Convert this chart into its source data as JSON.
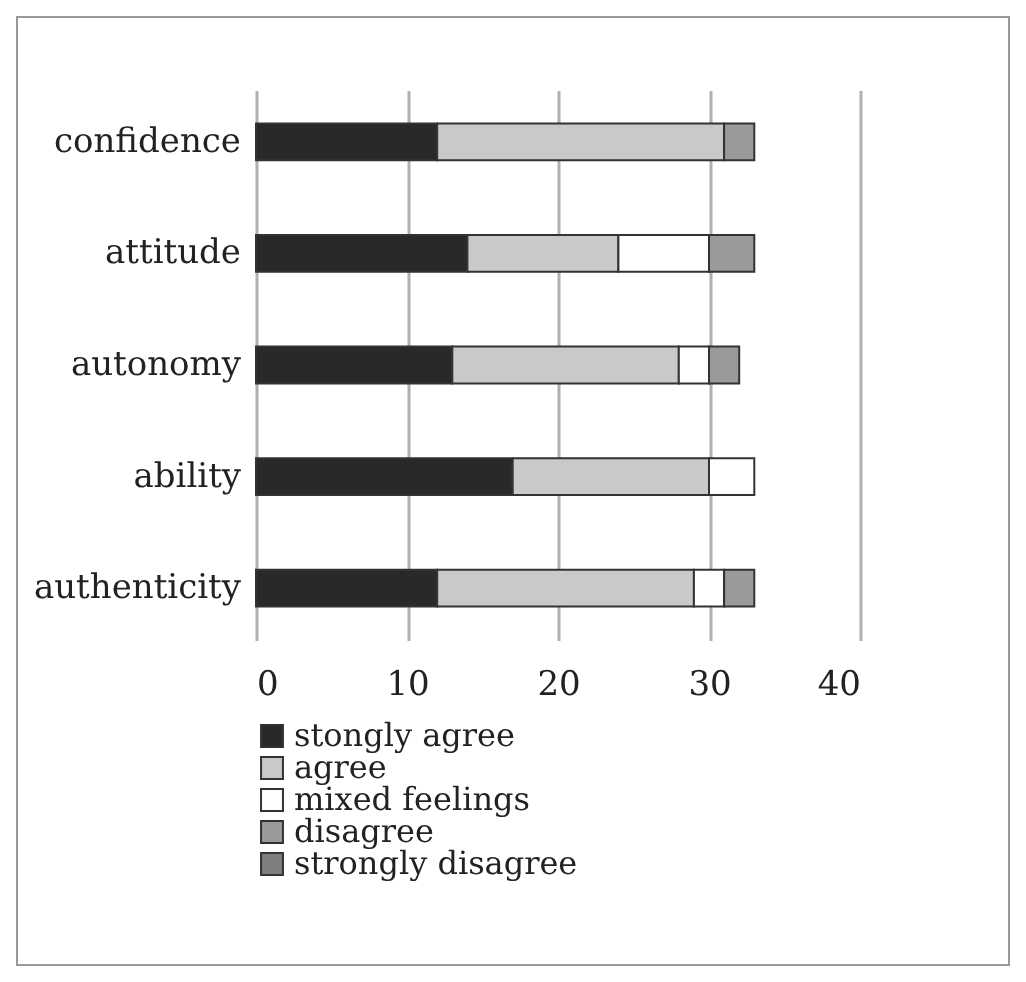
{
  "chart_data": {
    "type": "bar",
    "orientation": "horizontal",
    "stacked": true,
    "categories": [
      "confidence",
      "attitude",
      "autonomy",
      "ability",
      "authenticity"
    ],
    "series": [
      {
        "name": "stongly agree",
        "color": "#2b2828",
        "values": [
          12,
          14,
          13,
          17,
          12
        ]
      },
      {
        "name": "agree",
        "color": "#c8c9c9",
        "values": [
          19,
          10,
          15,
          13,
          17
        ]
      },
      {
        "name": "mixed feelings",
        "color": "#ffffff",
        "values": [
          0,
          6,
          2,
          3,
          2
        ]
      },
      {
        "name": "disagree",
        "color": "#9a9a9a",
        "values": [
          2,
          3,
          2,
          0,
          2
        ]
      },
      {
        "name": "strongly disagree",
        "color": "#7f7f7f",
        "values": [
          0,
          0,
          0,
          0,
          0
        ]
      }
    ],
    "xlim": [
      0,
      40
    ],
    "xticks": [
      0,
      10,
      20,
      30,
      40
    ],
    "grid": "x",
    "legend": "bottom"
  }
}
